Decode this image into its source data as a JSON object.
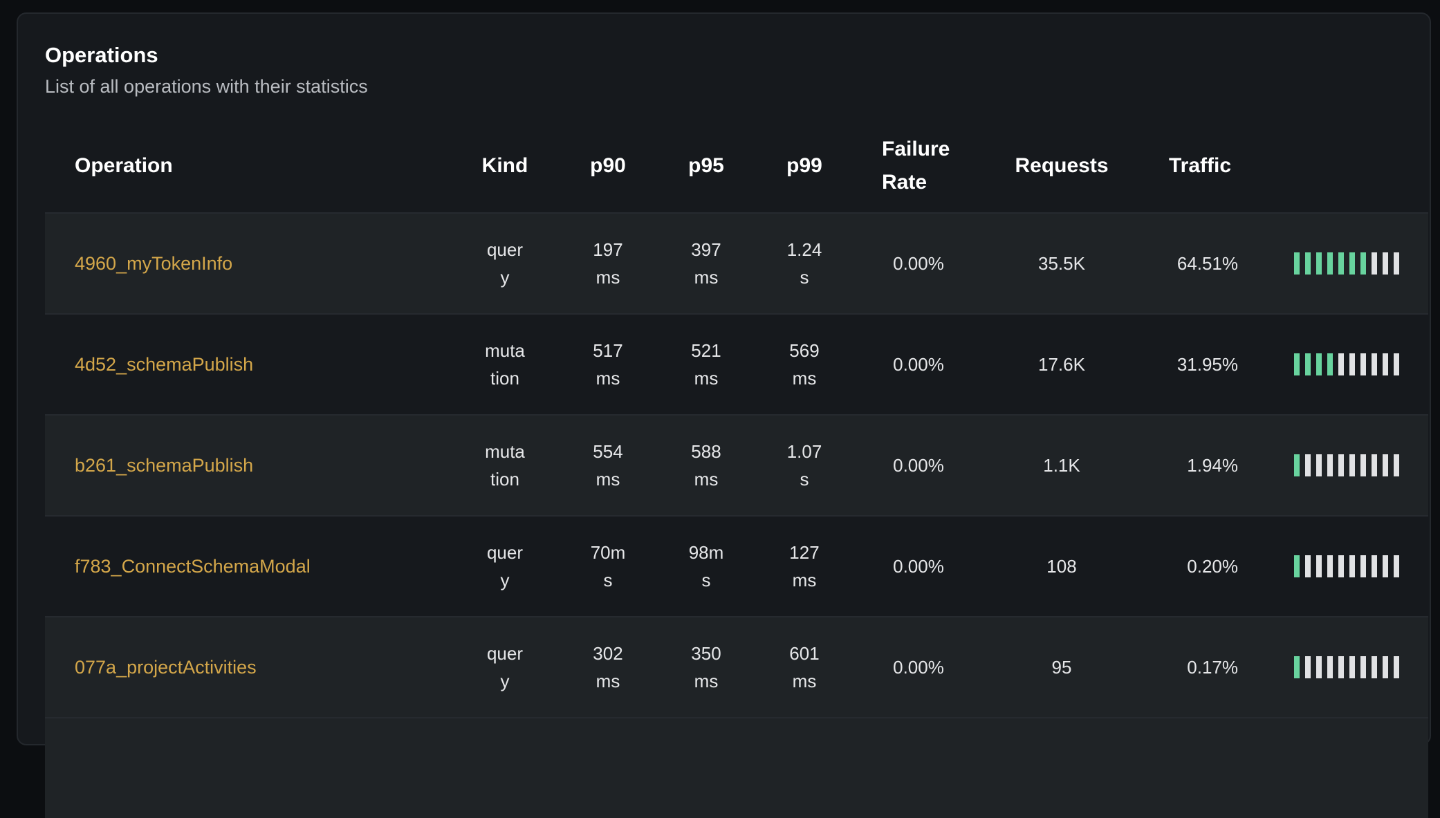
{
  "header": {
    "title": "Operations",
    "subtitle": "List of all operations with their statistics"
  },
  "columns": {
    "operation": "Operation",
    "kind": "Kind",
    "p90": "p90",
    "p95": "p95",
    "p99": "p99",
    "failure_rate": "Failure Rate",
    "requests": "Requests",
    "traffic": "Traffic"
  },
  "colors": {
    "link": "#d4a74a",
    "traffic_filled": "#68d39e",
    "traffic_empty": "#e1e2e4"
  },
  "rows": [
    {
      "operation": "4960_myTokenInfo",
      "kind": "query",
      "p90": "197 ms",
      "p95": "397 ms",
      "p99": "1.24 s",
      "failure_rate": "0.00%",
      "requests": "35.5K",
      "traffic": "64.51%",
      "traffic_value": 64.51
    },
    {
      "operation": "4d52_schemaPublish",
      "kind": "mutation",
      "p90": "517 ms",
      "p95": "521 ms",
      "p99": "569 ms",
      "failure_rate": "0.00%",
      "requests": "17.6K",
      "traffic": "31.95%",
      "traffic_value": 31.95
    },
    {
      "operation": "b261_schemaPublish",
      "kind": "mutation",
      "p90": "554 ms",
      "p95": "588 ms",
      "p99": "1.07 s",
      "failure_rate": "0.00%",
      "requests": "1.1K",
      "traffic": "1.94%",
      "traffic_value": 1.94
    },
    {
      "operation": "f783_ConnectSchemaModal",
      "kind": "query",
      "p90": "70ms",
      "p95": "98ms",
      "p99": "127 ms",
      "failure_rate": "0.00%",
      "requests": "108",
      "traffic": "0.20%",
      "traffic_value": 0.2
    },
    {
      "operation": "077a_projectActivities",
      "kind": "query",
      "p90": "302 ms",
      "p95": "350 ms",
      "p99": "601 ms",
      "failure_rate": "0.00%",
      "requests": "95",
      "traffic": "0.17%",
      "traffic_value": 0.17
    }
  ]
}
